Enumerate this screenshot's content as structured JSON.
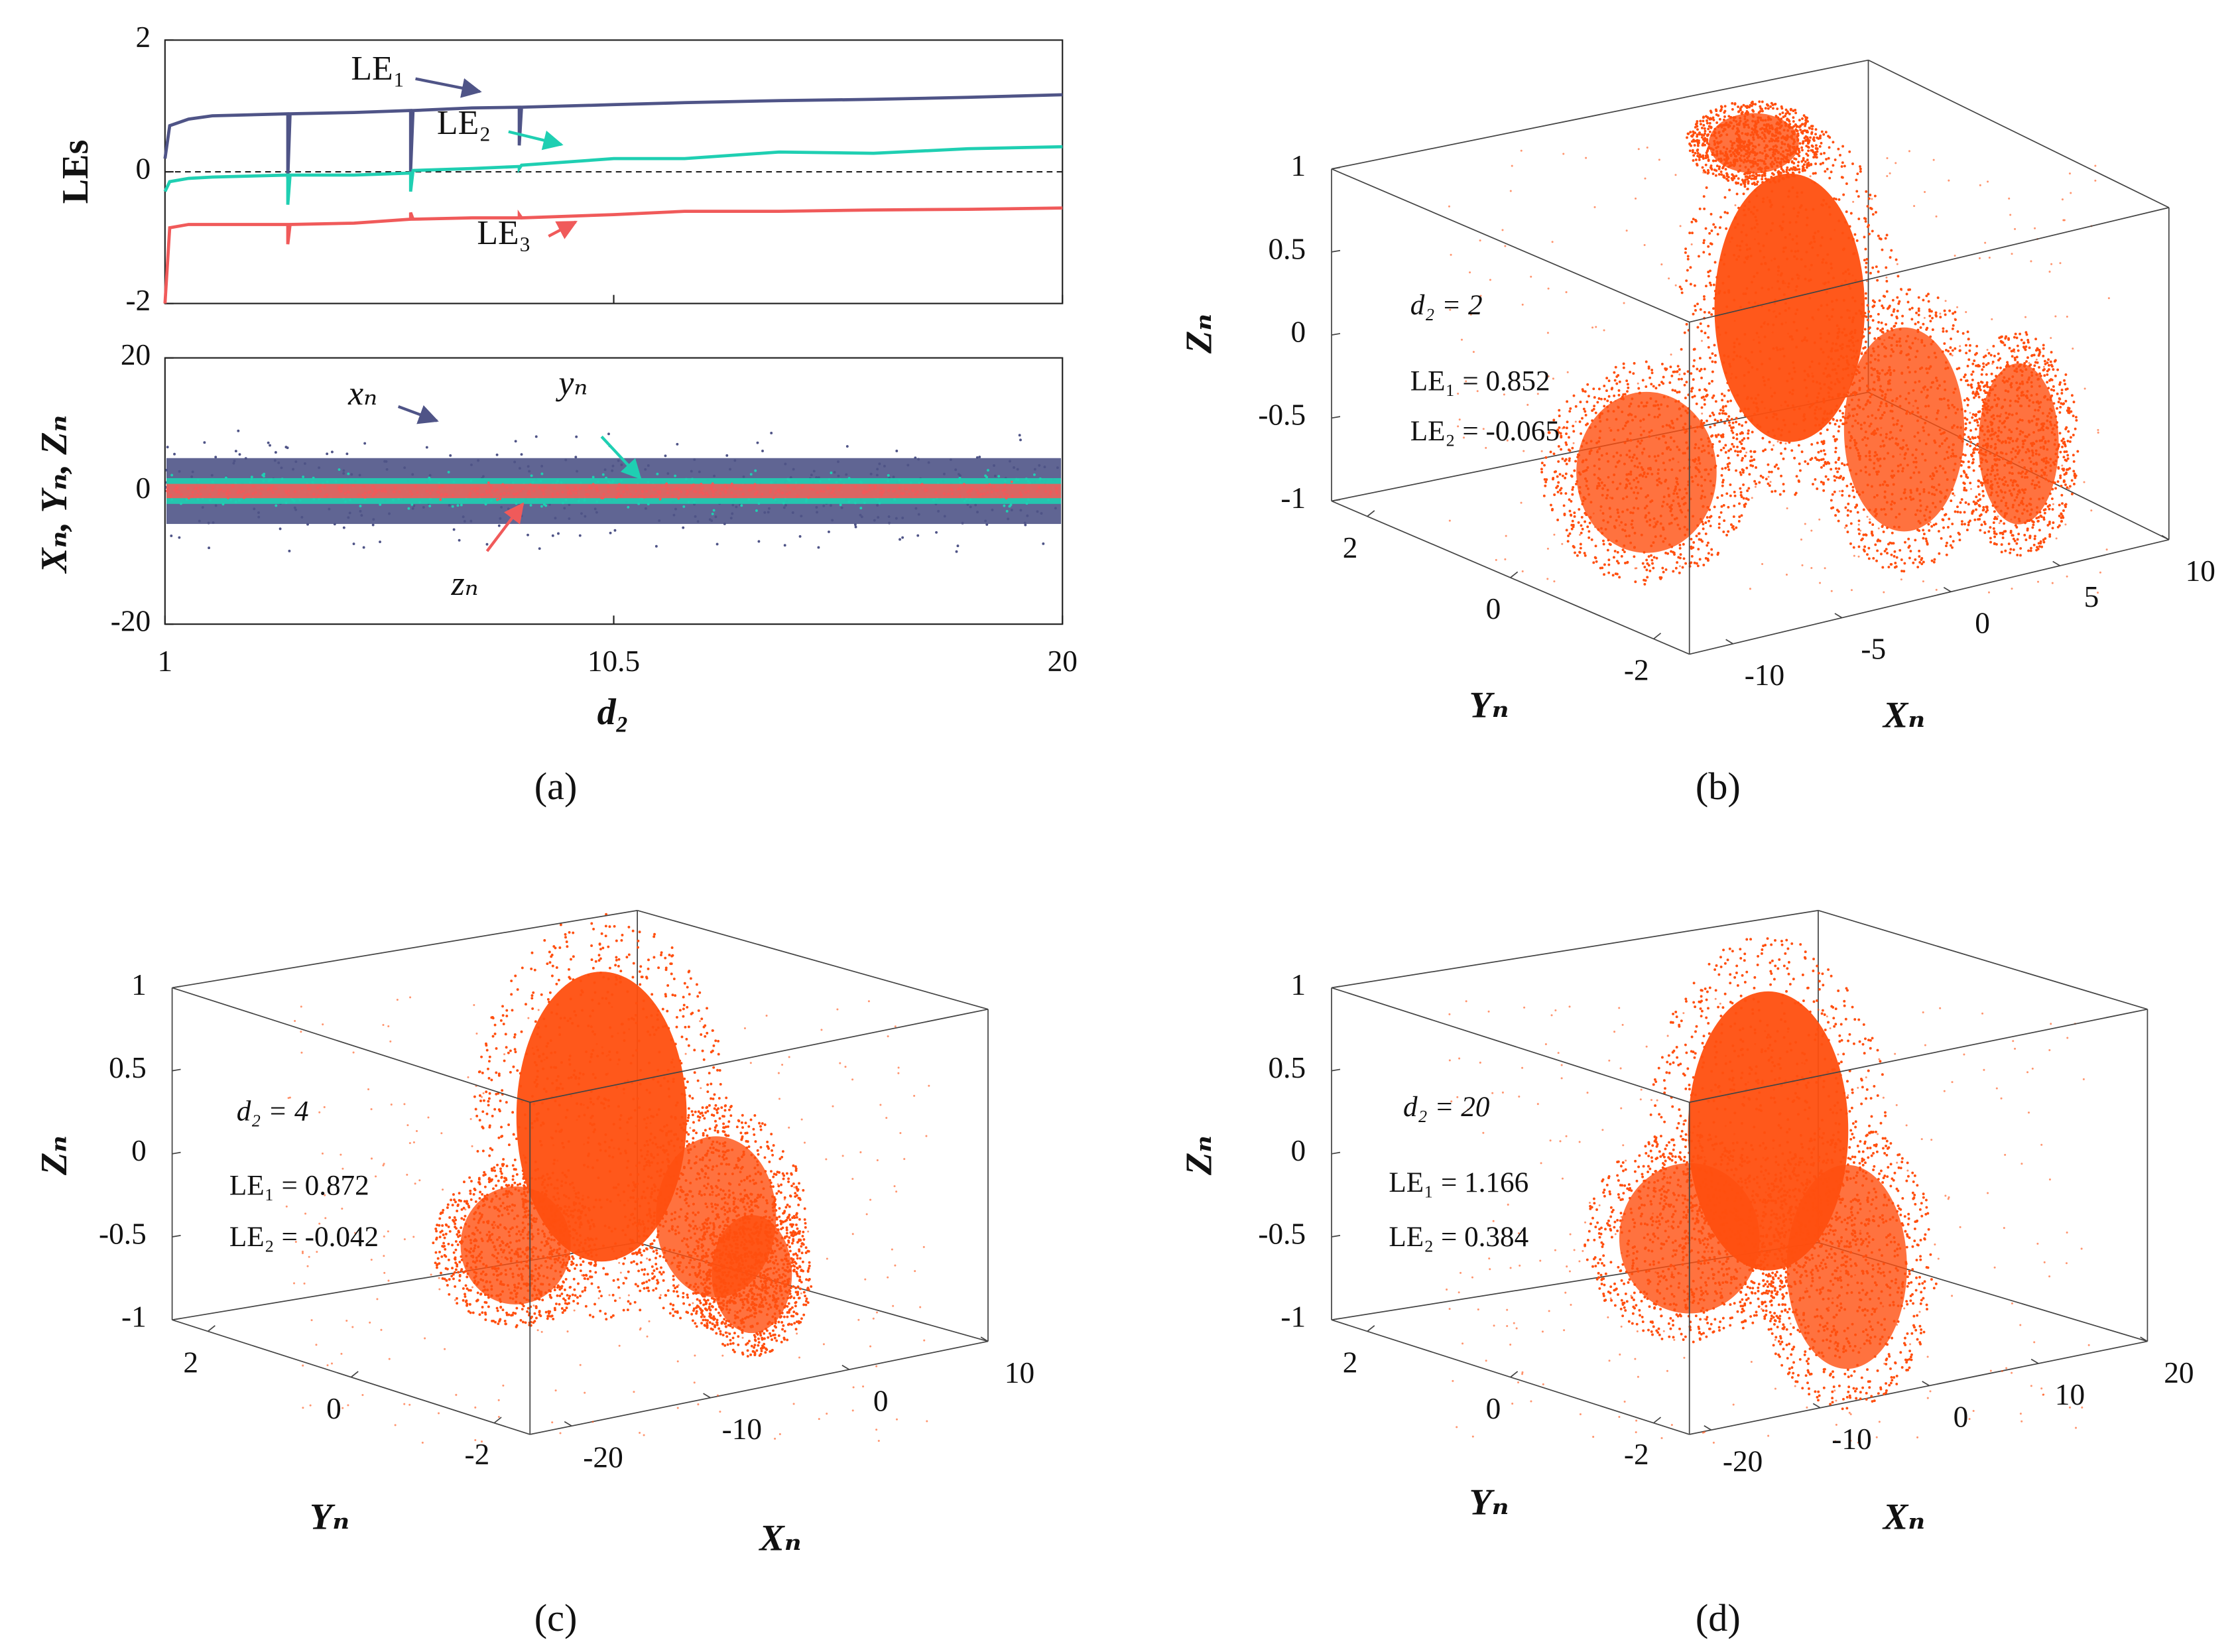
{
  "chart_data": [
    {
      "type": "line",
      "ylabel": "LEs",
      "x": [
        1,
        1.1,
        1.5,
        2,
        3.6,
        3.6,
        3.65,
        5,
        6.2,
        6.2,
        6.25,
        7.5,
        8.5,
        8.5,
        8.55,
        10.5,
        12,
        14,
        16,
        18,
        20
      ],
      "series": [
        {
          "name": "LE₁",
          "color": "#4f5487",
          "values": [
            0.2,
            0.7,
            0.8,
            0.85,
            0.88,
            -0.1,
            0.88,
            0.9,
            0.93,
            0.0,
            0.93,
            0.97,
            0.98,
            0.4,
            0.98,
            1.02,
            1.05,
            1.08,
            1.1,
            1.13,
            1.17
          ]
        },
        {
          "name": "LE₂",
          "color": "#1fcfb2",
          "values": [
            -0.3,
            -0.15,
            -0.1,
            -0.08,
            -0.05,
            -0.5,
            -0.05,
            -0.05,
            -0.02,
            -0.3,
            0.02,
            0.05,
            0.08,
            0.05,
            0.1,
            0.2,
            0.2,
            0.3,
            0.28,
            0.35,
            0.38
          ]
        },
        {
          "name": "LE₃",
          "color": "#f05a5a",
          "values": [
            -2,
            -0.85,
            -0.8,
            -0.8,
            -0.8,
            -1.1,
            -0.8,
            -0.78,
            -0.72,
            -0.62,
            -0.72,
            -0.7,
            -0.7,
            -0.65,
            -0.7,
            -0.65,
            -0.6,
            -0.6,
            -0.58,
            -0.57,
            -0.55
          ]
        }
      ],
      "reference_line": 0,
      "xlim": [
        1,
        20
      ],
      "xticks": [
        1,
        10.5,
        20
      ],
      "ylim": [
        -2,
        2
      ],
      "yticks": [
        -2,
        0,
        2
      ]
    },
    {
      "type": "scatter",
      "ylabel": "Xₙ, Yₙ, Zₙ",
      "xlabel": "d₂",
      "caption": "(a)",
      "series": [
        {
          "name": "xₙ",
          "color": "#4f5487"
        },
        {
          "name": "yₙ",
          "color": "#1fcfb2"
        },
        {
          "name": "zₙ",
          "color": "#f05a5a"
        }
      ],
      "xlim": [
        1,
        20
      ],
      "xticks": [
        1,
        10.5,
        20
      ],
      "ylim": [
        -20,
        20
      ],
      "yticks": [
        -20,
        0,
        20
      ]
    },
    {
      "type": "scatter3d",
      "color": "#ff4f0f",
      "xlabel": "Xₙ",
      "ylabel": "Yₙ",
      "zlabel": "Zₙ",
      "caption": "(b)",
      "annotations": [
        "d₂ = 2",
        "LE₁ = 0.852",
        "LE₂ = -0.065"
      ],
      "xlim": [
        -12,
        10
      ],
      "xticks": [
        -10,
        -5,
        0,
        5,
        10
      ],
      "ylim": [
        -2.5,
        2.5
      ],
      "yticks": [
        -2,
        0,
        2
      ],
      "zlim": [
        -1,
        1
      ],
      "zticks": [
        -1,
        -0.5,
        0,
        0.5,
        1
      ]
    },
    {
      "type": "scatter3d",
      "color": "#ff4f0f",
      "xlabel": "Xₙ",
      "ylabel": "Yₙ",
      "zlabel": "Zₙ",
      "caption": "(c)",
      "annotations": [
        "d₂ = 4",
        "LE₁ = 0.872",
        "LE₂ = -0.042"
      ],
      "xlim": [
        -23,
        10
      ],
      "xticks": [
        -20,
        -10,
        0,
        10
      ],
      "ylim": [
        -2.5,
        2.5
      ],
      "yticks": [
        -2,
        0,
        2
      ],
      "zlim": [
        -1,
        1
      ],
      "zticks": [
        -1,
        -0.5,
        0,
        0.5,
        1
      ]
    },
    {
      "type": "scatter3d",
      "color": "#ff4f0f",
      "xlabel": "Xₙ",
      "ylabel": "Yₙ",
      "zlabel": "Zₙ",
      "caption": "(d)",
      "annotations": [
        "d₂ = 20",
        "LE₁ = 1.166",
        "LE₂ = 0.384"
      ],
      "xlim": [
        -22,
        20
      ],
      "xticks": [
        -20,
        -10,
        0,
        10,
        20
      ],
      "ylim": [
        -2.5,
        2.5
      ],
      "yticks": [
        -2,
        0,
        2
      ],
      "zlim": [
        -1,
        1
      ],
      "zticks": [
        -1,
        -0.5,
        0,
        0.5,
        1
      ]
    }
  ]
}
